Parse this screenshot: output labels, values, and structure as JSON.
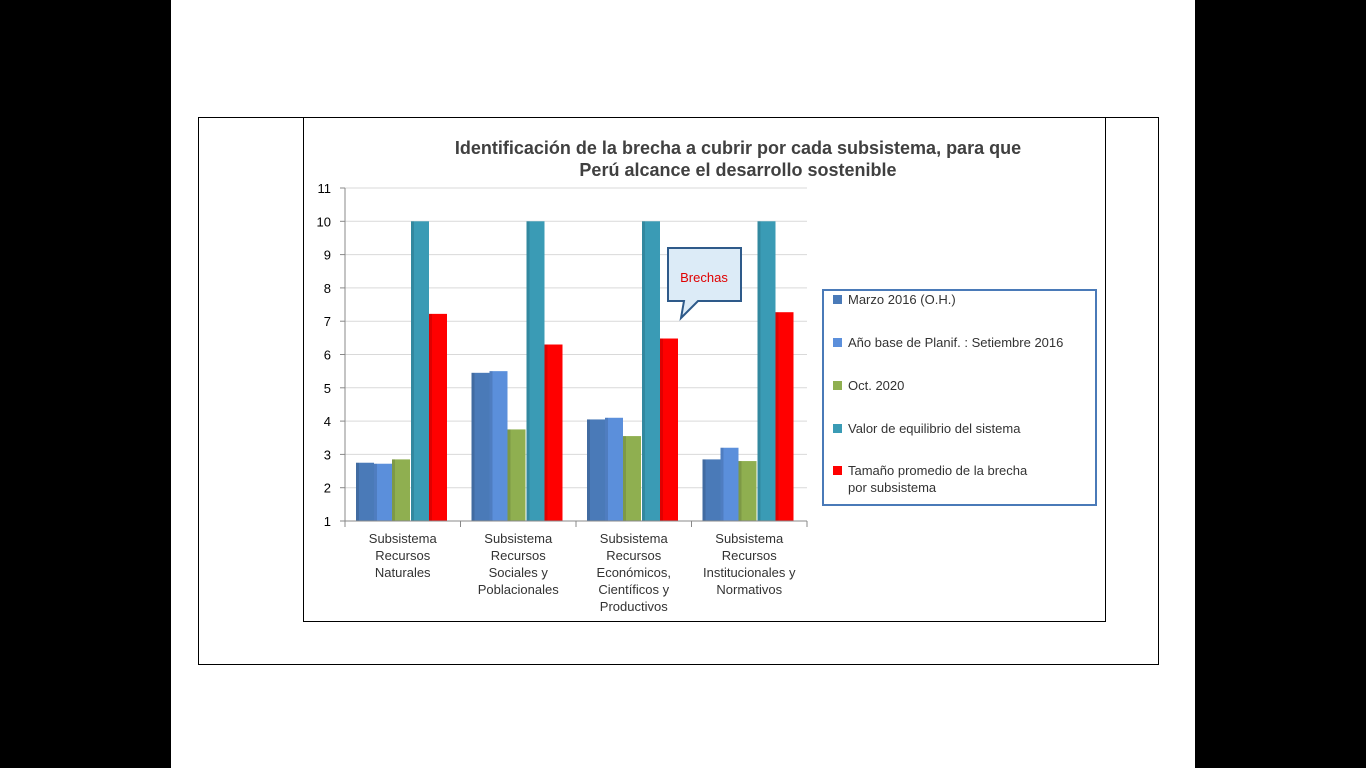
{
  "chart_data": {
    "type": "bar",
    "title_lines": [
      "Identificación de la brecha a cubrir por cada subsistema, para que",
      "Perú alcance el desarrollo sostenible"
    ],
    "categories": [
      [
        "Subsistema",
        "Recursos",
        "Naturales"
      ],
      [
        "Subsistema",
        "Recursos",
        "Sociales y",
        "Poblacionales"
      ],
      [
        "Subsistema",
        "Recursos",
        "Económicos,",
        "Científicos y",
        "Productivos"
      ],
      [
        "Subsistema",
        "Recursos",
        "Institucionales y",
        "Normativos"
      ]
    ],
    "series": [
      {
        "name": "Marzo 2016 (O.H.)",
        "color": "#4a7ab8",
        "values": [
          2.75,
          5.45,
          4.05,
          2.85
        ]
      },
      {
        "name": "Año base de Planif. : Setiembre 2016",
        "color": "#5b8fdb",
        "values": [
          2.72,
          5.5,
          4.1,
          3.2
        ]
      },
      {
        "name": "Oct. 2020",
        "color": "#8faf50",
        "values": [
          2.85,
          3.75,
          3.55,
          2.8
        ]
      },
      {
        "name": "Valor de equilibrio del sistema",
        "color": "#3a9bb5",
        "values": [
          10,
          10,
          10,
          10
        ]
      },
      {
        "name_lines": [
          "Tamaño promedio de la brecha",
          "por subsistema"
        ],
        "color": "#ff0000",
        "values": [
          7.22,
          6.3,
          6.48,
          7.27
        ]
      }
    ],
    "ylim": [
      1,
      11
    ],
    "yticks": [
      "1",
      "2",
      "3",
      "4",
      "5",
      "6",
      "7",
      "8",
      "9",
      "10",
      "11"
    ],
    "legend_position": "right",
    "annotation": "Brechas",
    "grid": true
  }
}
